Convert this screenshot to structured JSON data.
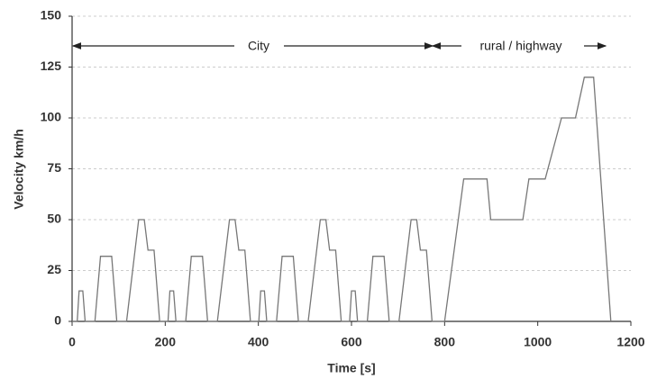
{
  "chart_data": {
    "type": "line",
    "x_label": "Time [s]",
    "y_label": "Velocity km/h",
    "annotations": [
      "City",
      "rural / highway"
    ],
    "x": [
      0,
      11,
      15,
      23,
      28,
      49,
      61,
      85,
      96,
      117,
      143,
      155,
      163,
      176,
      188,
      195,
      206,
      210,
      218,
      223,
      244,
      256,
      280,
      291,
      312,
      338,
      350,
      358,
      371,
      383,
      390,
      401,
      405,
      413,
      418,
      439,
      451,
      475,
      486,
      507,
      533,
      545,
      553,
      566,
      578,
      585,
      596,
      600,
      608,
      613,
      634,
      646,
      670,
      681,
      702,
      728,
      740,
      748,
      761,
      773,
      800,
      841,
      891,
      899,
      968,
      981,
      1016,
      1051,
      1081,
      1100,
      1120,
      1157
    ],
    "values": [
      0,
      0,
      15,
      15,
      0,
      0,
      32,
      32,
      0,
      0,
      50,
      50,
      35,
      35,
      0,
      0,
      0,
      15,
      15,
      0,
      0,
      32,
      32,
      0,
      0,
      50,
      50,
      35,
      35,
      0,
      0,
      0,
      15,
      15,
      0,
      0,
      32,
      32,
      0,
      0,
      50,
      50,
      35,
      35,
      0,
      0,
      0,
      15,
      15,
      0,
      0,
      32,
      32,
      0,
      0,
      50,
      50,
      35,
      35,
      0,
      0,
      70,
      70,
      50,
      50,
      70,
      70,
      100,
      100,
      120,
      120,
      0
    ],
    "color": "#777777",
    "xlim": [
      0,
      1200
    ],
    "xticks": [
      0,
      200,
      400,
      600,
      800,
      1000,
      1200
    ],
    "ylim": [
      0,
      150
    ],
    "yticks": [
      0,
      25,
      50,
      75,
      100,
      125,
      150
    ],
    "grid": true
  }
}
